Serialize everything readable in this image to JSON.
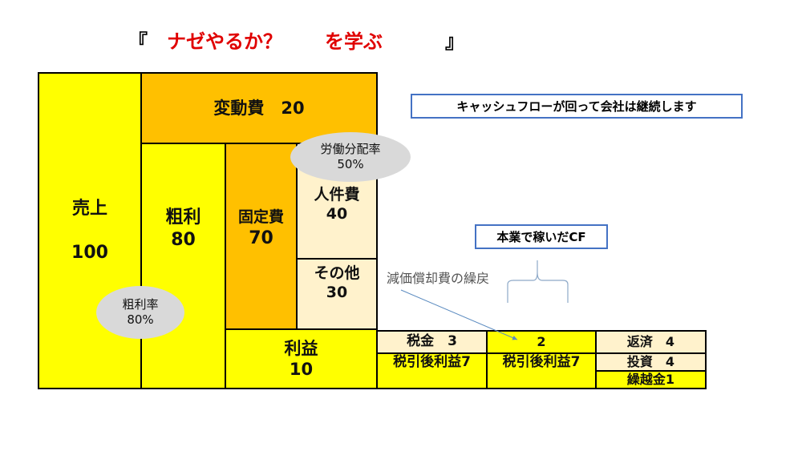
{
  "title": {
    "open": "『",
    "main": "ナゼやるか？",
    "sub": "を学ぶ",
    "close": "』",
    "accent": "#E00000"
  },
  "blocks": {
    "sales": {
      "label": "売上",
      "value": "100"
    },
    "variable_cost": {
      "label": "変動費　20"
    },
    "gross_profit": {
      "label": "粗利",
      "value": "80"
    },
    "fixed_cost": {
      "label": "固定費",
      "value": "70"
    },
    "labor_cost": {
      "label": "人件費",
      "value": "40"
    },
    "other": {
      "label": "その他",
      "value": "30"
    },
    "profit": {
      "label": "利益",
      "value": "10"
    },
    "tax": {
      "label": "税金　3"
    },
    "after_tax_1": {
      "label": "税引後利益7"
    },
    "depreciation": {
      "label": "2"
    },
    "after_tax_2": {
      "label": "税引後利益7"
    },
    "repayment": {
      "label": "返済　4"
    },
    "investment": {
      "label": "投資　4"
    },
    "carryover": {
      "label": "繰越金1"
    }
  },
  "ellipses": {
    "labor_ratio": {
      "label": "労働分配率",
      "value": "50%"
    },
    "gross_ratio": {
      "label": "粗利率",
      "value": "80%"
    }
  },
  "notes": {
    "cashflow": "キャッシュフローが回って会社は継続します",
    "core_cf": "本業で稼いだCF",
    "depreciation_addback": "減価償却費の繰戻"
  },
  "colors": {
    "yellow": "#FFFF00",
    "orange": "#FFC000",
    "light": "#FFF2CC",
    "gray": "#D9D9D9",
    "blue": "#4472C4"
  }
}
